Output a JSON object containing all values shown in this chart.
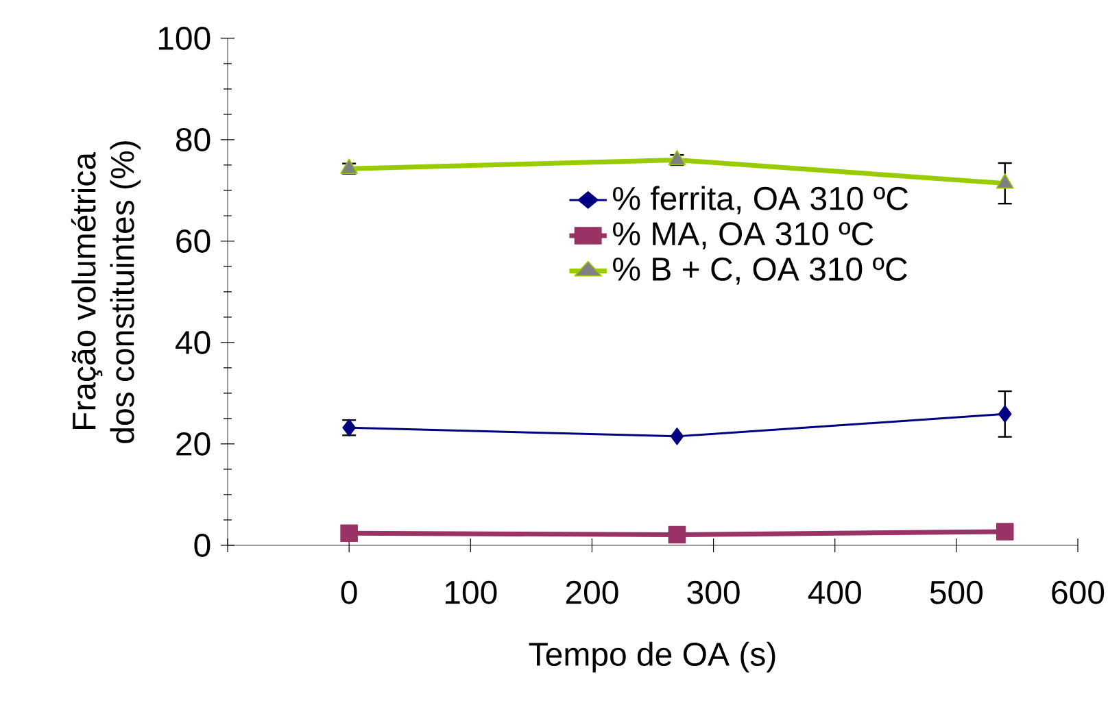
{
  "chart_data": {
    "type": "line",
    "xlabel": "Tempo de OA (s)",
    "ylabel": "Fração volumétrica\ndos constituintes (%)",
    "x": [
      0,
      270,
      540
    ],
    "series": [
      {
        "name": "% ferrita, OA 310 ºC",
        "color": "#000080",
        "marker": "diamond",
        "values": [
          23.2,
          21.5,
          25.9
        ],
        "errors": [
          1.5,
          null,
          4.5
        ]
      },
      {
        "name": "% MA, OA 310 ºC",
        "color": "#993366",
        "marker": "square",
        "values": [
          2.4,
          2.1,
          2.7
        ]
      },
      {
        "name": "% B + C, OA 310 ºC",
        "color": "#99cc00",
        "marker": "triangle",
        "values": [
          74.3,
          76.0,
          71.4
        ],
        "errors": [
          1,
          1,
          4
        ]
      }
    ],
    "xlim": [
      -100,
      600
    ],
    "xticks": [
      {
        "value": -100,
        "label": null
      },
      0,
      100,
      200,
      300,
      400,
      500,
      600
    ],
    "ylim": [
      0,
      100
    ],
    "yticks": [
      0,
      20,
      40,
      60,
      80,
      100
    ],
    "grid": false,
    "legend": "right"
  }
}
